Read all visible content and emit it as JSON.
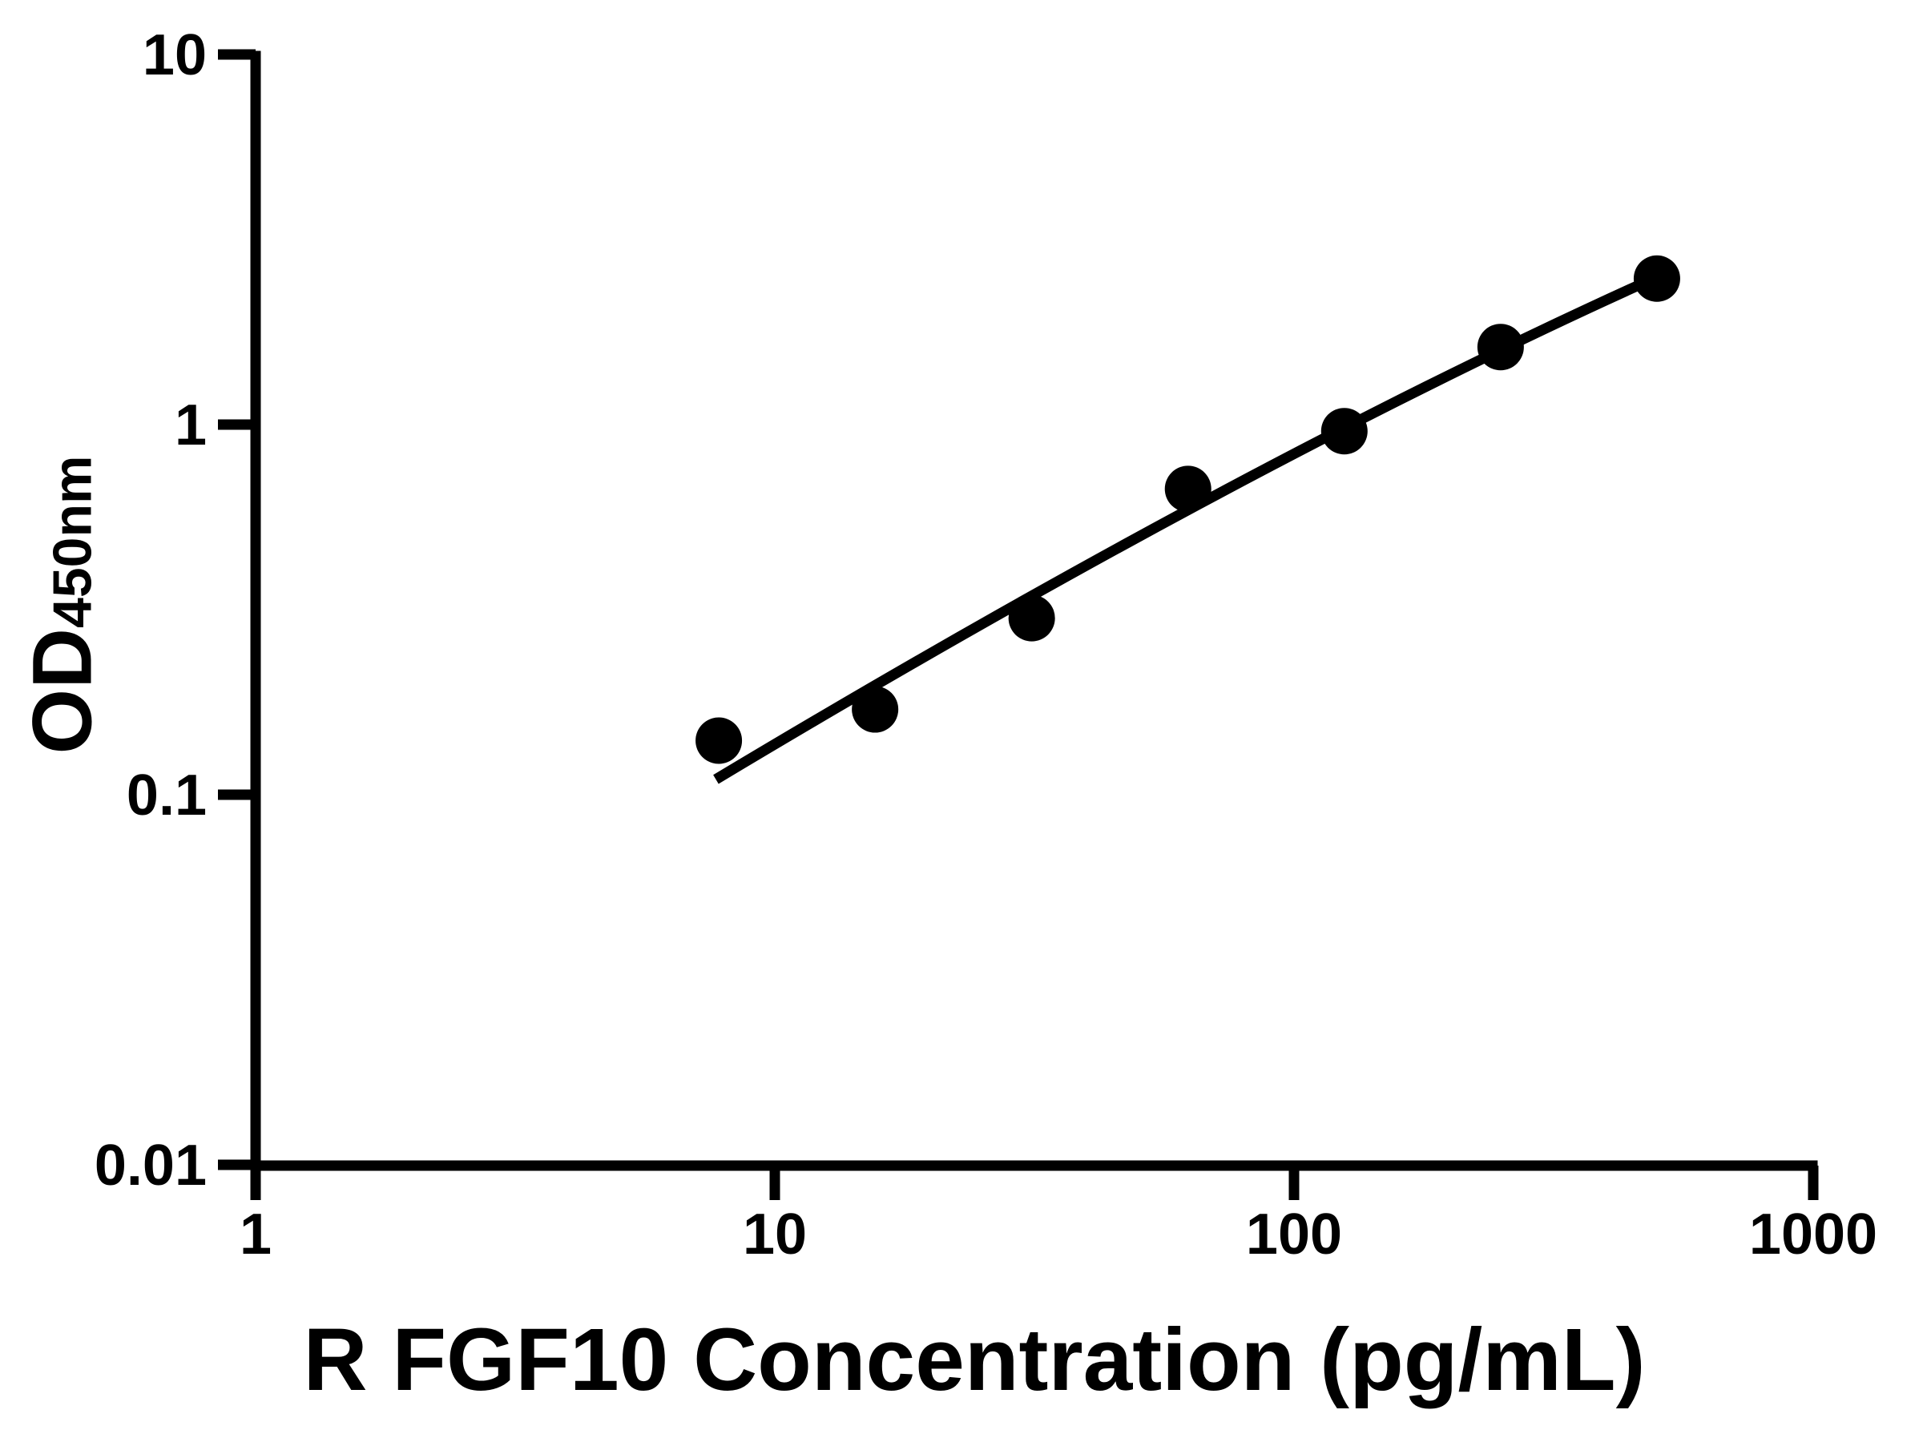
{
  "figure": {
    "background_color": "#ffffff",
    "ink_color": "#000000"
  },
  "y_axis": {
    "title_main": "OD",
    "title_sub": "450nm",
    "scale": "log",
    "range": [
      0.01,
      10
    ],
    "tick_labels": [
      "10",
      "1",
      "0.1",
      "0.01"
    ],
    "tick_values": [
      10,
      1,
      0.1,
      0.01
    ]
  },
  "x_axis": {
    "title": "R FGF10 Concentration (pg/mL)",
    "scale": "log",
    "range": [
      1,
      1000
    ],
    "tick_labels": [
      "1",
      "10",
      "100",
      "1000"
    ],
    "tick_values": [
      1,
      10,
      100,
      1000
    ]
  },
  "chart_data": {
    "type": "scatter",
    "title": "",
    "xlabel": "R FGF10 Concentration (pg/mL)",
    "ylabel": "OD450nm",
    "x_scale": "log",
    "y_scale": "log",
    "xlim": [
      1,
      1000
    ],
    "ylim": [
      0.01,
      10
    ],
    "grid": false,
    "legend": null,
    "x": [
      7.8,
      15.6,
      31.25,
      62.5,
      125,
      250,
      500
    ],
    "y": [
      0.14,
      0.17,
      0.3,
      0.67,
      0.96,
      1.62,
      2.48
    ],
    "marker": {
      "shape": "circle",
      "color": "#000000",
      "radius_px": 29
    },
    "fit_line": {
      "type": "quadratic-bezier-loglog",
      "color": "#000000",
      "start": {
        "x": 7.7,
        "y": 0.11
      },
      "control": {
        "x": 79,
        "y": 0.78
      },
      "end": {
        "x": 492,
        "y": 2.48
      }
    }
  }
}
